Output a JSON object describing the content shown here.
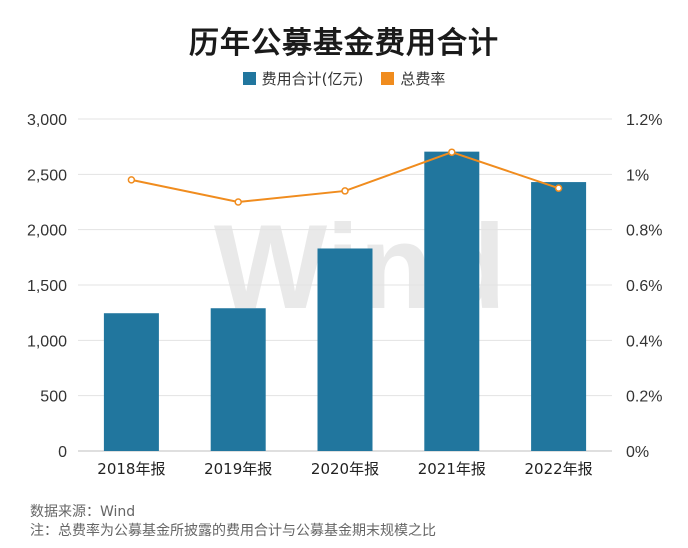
{
  "chart_data": {
    "type": "bar",
    "title": "历年公募基金费用合计",
    "categories": [
      "2018年报",
      "2019年报",
      "2020年报",
      "2021年报",
      "2022年报"
    ],
    "series": [
      {
        "name": "费用合计(亿元)",
        "type": "bar",
        "axis": "left",
        "color": "#21769e",
        "values": [
          1245,
          1290,
          1830,
          2705,
          2430
        ]
      },
      {
        "name": "总费率",
        "type": "line",
        "axis": "right",
        "color": "#f08c1e",
        "values": [
          0.98,
          0.9,
          0.94,
          1.08,
          0.95
        ]
      }
    ],
    "y_left": {
      "min": 0,
      "max": 3000,
      "ticks": [
        "0",
        "500",
        "1,000",
        "1,500",
        "2,000",
        "2,500",
        "3,000"
      ]
    },
    "y_right": {
      "min": 0,
      "max": 1.2,
      "ticks": [
        "0%",
        "0.2%",
        "0.4%",
        "0.6%",
        "0.8%",
        "1%",
        "1.2%"
      ]
    },
    "grid": true,
    "legend_position": "top"
  },
  "watermark": "Wind",
  "footnotes": {
    "source": "数据来源：Wind",
    "note": "注：总费率为公募基金所披露的费用合计与公募基金期末规模之比"
  }
}
